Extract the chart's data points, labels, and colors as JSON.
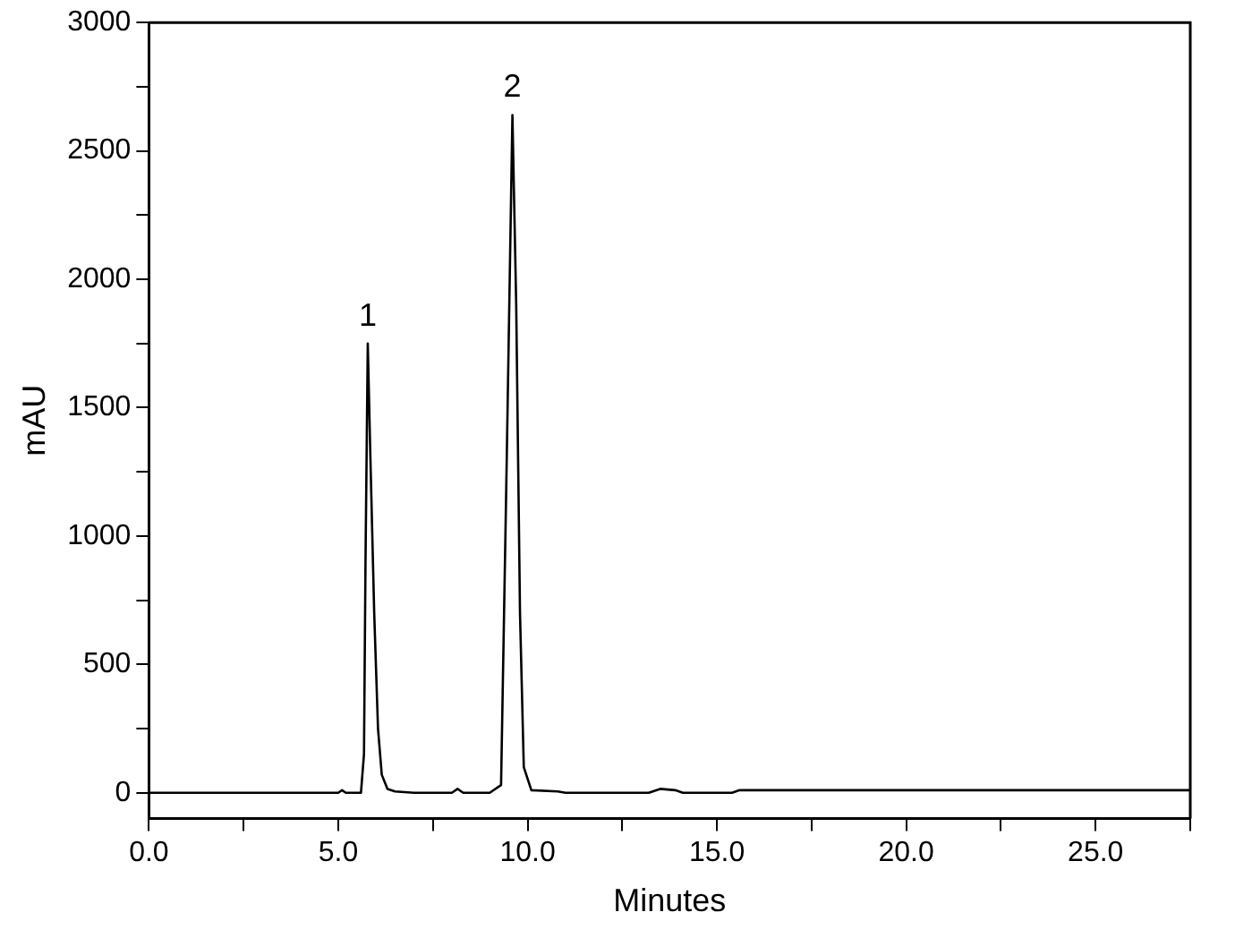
{
  "chart_data": {
    "type": "line",
    "xlabel": "Minutes",
    "ylabel": "mAU",
    "xlim": [
      0,
      27.5
    ],
    "ylim": [
      -100,
      3000
    ],
    "xticks": [
      {
        "value": 0,
        "label": "0.0"
      },
      {
        "value": 2.5,
        "label": null
      },
      {
        "value": 5,
        "label": "5.0"
      },
      {
        "value": 7.5,
        "label": null
      },
      {
        "value": 10,
        "label": "10.0"
      },
      {
        "value": 12.5,
        "label": null
      },
      {
        "value": 15,
        "label": "15.0"
      },
      {
        "value": 17.5,
        "label": null
      },
      {
        "value": 20,
        "label": "20.0"
      },
      {
        "value": 22.5,
        "label": null
      },
      {
        "value": 25,
        "label": "25.0"
      },
      {
        "value": 27.5,
        "label": null
      }
    ],
    "yticks": [
      0,
      {
        "value": 250,
        "label": null
      },
      500,
      {
        "value": 750,
        "label": null
      },
      1000,
      {
        "value": 1250,
        "label": null
      },
      1500,
      {
        "value": 1750,
        "label": null
      },
      2000,
      {
        "value": 2250,
        "label": null
      },
      2500,
      {
        "value": 2750,
        "label": null
      },
      3000
    ],
    "grid": false,
    "legend": false,
    "marker": "none",
    "line_style": "solid",
    "series": [
      {
        "color": "#000000",
        "x": [
          0,
          5.0,
          5.1,
          5.2,
          5.6,
          5.68,
          5.72,
          5.78,
          5.85,
          5.95,
          6.05,
          6.15,
          6.3,
          6.5,
          7.0,
          8.0,
          8.15,
          8.3,
          9.0,
          9.3,
          9.45,
          9.6,
          9.7,
          9.8,
          9.9,
          10.1,
          10.8,
          11.0,
          13.2,
          13.5,
          13.9,
          14.1,
          15.4,
          15.6,
          27.5
        ],
        "values": [
          0,
          0,
          10,
          0,
          0,
          150,
          900,
          1750,
          1300,
          700,
          250,
          70,
          15,
          5,
          0,
          0,
          15,
          0,
          0,
          30,
          1300,
          2640,
          1900,
          700,
          100,
          10,
          5,
          0,
          0,
          15,
          10,
          0,
          0,
          10,
          10
        ]
      }
    ],
    "annotations": [
      {
        "text": "1",
        "x": 5.78,
        "y": 1750
      },
      {
        "text": "2",
        "x": 9.6,
        "y": 2640
      }
    ]
  }
}
